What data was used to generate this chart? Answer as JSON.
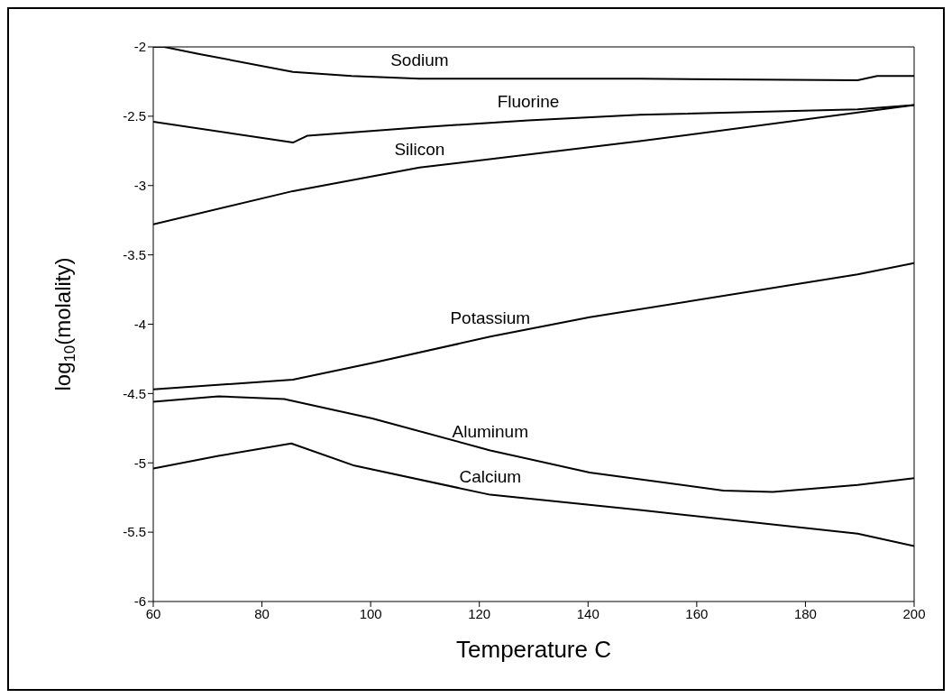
{
  "chart_data": {
    "type": "line",
    "xlabel": "Temperature C",
    "ylabel": "log$_{10}$(molality)",
    "xlim": [
      60,
      200
    ],
    "xticks": [
      60,
      80,
      100,
      120,
      140,
      160,
      180,
      200
    ],
    "ylim": [
      -6,
      -2
    ],
    "yticks": [
      -6,
      -5.5,
      -5,
      -4.5,
      -4,
      -3.5,
      -3,
      -2.5,
      -2
    ],
    "marker": "none",
    "line_style": "solid",
    "series": [
      {
        "name": "Sodium",
        "color": "#000000",
        "x": [
          60,
          62,
          68.3,
          85.7,
          96.5,
          109,
          149.5,
          189.6,
          193.2,
          200
        ],
        "values": [
          -2.0,
          -2.0,
          -2.05,
          -2.18,
          -2.21,
          -2.23,
          -2.23,
          -2.24,
          -2.21,
          -2.21
        ]
      },
      {
        "name": "Fluorine",
        "color": "#000000",
        "x": [
          60,
          85.7,
          88.4,
          109,
          129,
          149.5,
          189.6,
          200
        ],
        "values": [
          -2.54,
          -2.69,
          -2.64,
          -2.58,
          -2.53,
          -2.49,
          -2.45,
          -2.42
        ]
      },
      {
        "name": "Silicon",
        "color": "#000000",
        "x": [
          60,
          85.7,
          109,
          149.5,
          200
        ],
        "values": [
          -3.28,
          -3.04,
          -2.87,
          -2.68,
          -2.42
        ]
      },
      {
        "name": "Potassium",
        "color": "#000000",
        "x": [
          60,
          85.7,
          100.3,
          122,
          140.3,
          189.6,
          200
        ],
        "values": [
          -4.47,
          -4.4,
          -4.28,
          -4.09,
          -3.95,
          -3.64,
          -3.56
        ]
      },
      {
        "name": "Aluminum",
        "color": "#000000",
        "x": [
          60,
          72,
          84.1,
          100.3,
          122,
          140.3,
          164.9,
          174,
          189.6,
          200
        ],
        "values": [
          -4.56,
          -4.52,
          -4.54,
          -4.68,
          -4.91,
          -5.07,
          -5.2,
          -5.21,
          -5.16,
          -5.11
        ]
      },
      {
        "name": "Calcium",
        "color": "#000000",
        "x": [
          60,
          72,
          85.4,
          97,
          122,
          149.5,
          189.6,
          200
        ],
        "values": [
          -5.04,
          -4.95,
          -4.86,
          -5.02,
          -5.23,
          -5.34,
          -5.51,
          -5.6
        ]
      }
    ]
  }
}
